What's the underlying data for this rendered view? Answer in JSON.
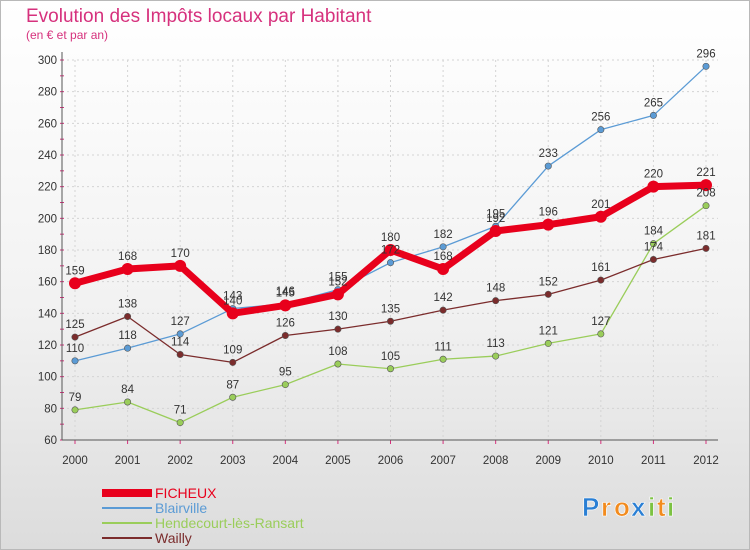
{
  "chart_data": {
    "type": "line",
    "title": "Evolution des Impôts locaux par Habitant",
    "subtitle": "(en € et par an)",
    "xlabel": "",
    "ylabel": "",
    "x": [
      "2000",
      "2001",
      "2002",
      "2003",
      "2004",
      "2005",
      "2006",
      "2007",
      "2008",
      "2009",
      "2010",
      "2011",
      "2012"
    ],
    "ylim": [
      60,
      300
    ],
    "yticks": [
      60,
      80,
      100,
      120,
      140,
      160,
      180,
      200,
      220,
      240,
      260,
      280,
      300
    ],
    "grid": true,
    "legend_position": "bottom-left",
    "series": [
      {
        "name": "FICHEUX",
        "color": "#e8001c",
        "values": [
          159,
          168,
          170,
          140,
          145,
          152,
          180,
          168,
          192,
          196,
          201,
          220,
          221
        ]
      },
      {
        "name": "Blairville",
        "color": "#5b9bd5",
        "values": [
          110,
          118,
          127,
          143,
          146,
          155,
          172,
          182,
          195,
          233,
          256,
          265,
          296
        ]
      },
      {
        "name": "Hendecourt-lès-Ransart",
        "color": "#9acd5a",
        "values": [
          79,
          84,
          71,
          87,
          95,
          108,
          105,
          111,
          113,
          121,
          127,
          184,
          208
        ]
      },
      {
        "name": "Wailly",
        "color": "#7b2c2c",
        "values": [
          125,
          138,
          114,
          109,
          126,
          130,
          135,
          142,
          148,
          152,
          161,
          174,
          181
        ]
      }
    ]
  },
  "logo": {
    "text": "Proxiti",
    "letters": [
      "P",
      "r",
      "o",
      "x",
      "i",
      "t",
      "i"
    ],
    "colors": [
      "#2a7fd4",
      "#f28b1e",
      "#f28b1e",
      "#2a7fd4",
      "#7cc242",
      "#f28b1e",
      "#7cc242"
    ]
  }
}
